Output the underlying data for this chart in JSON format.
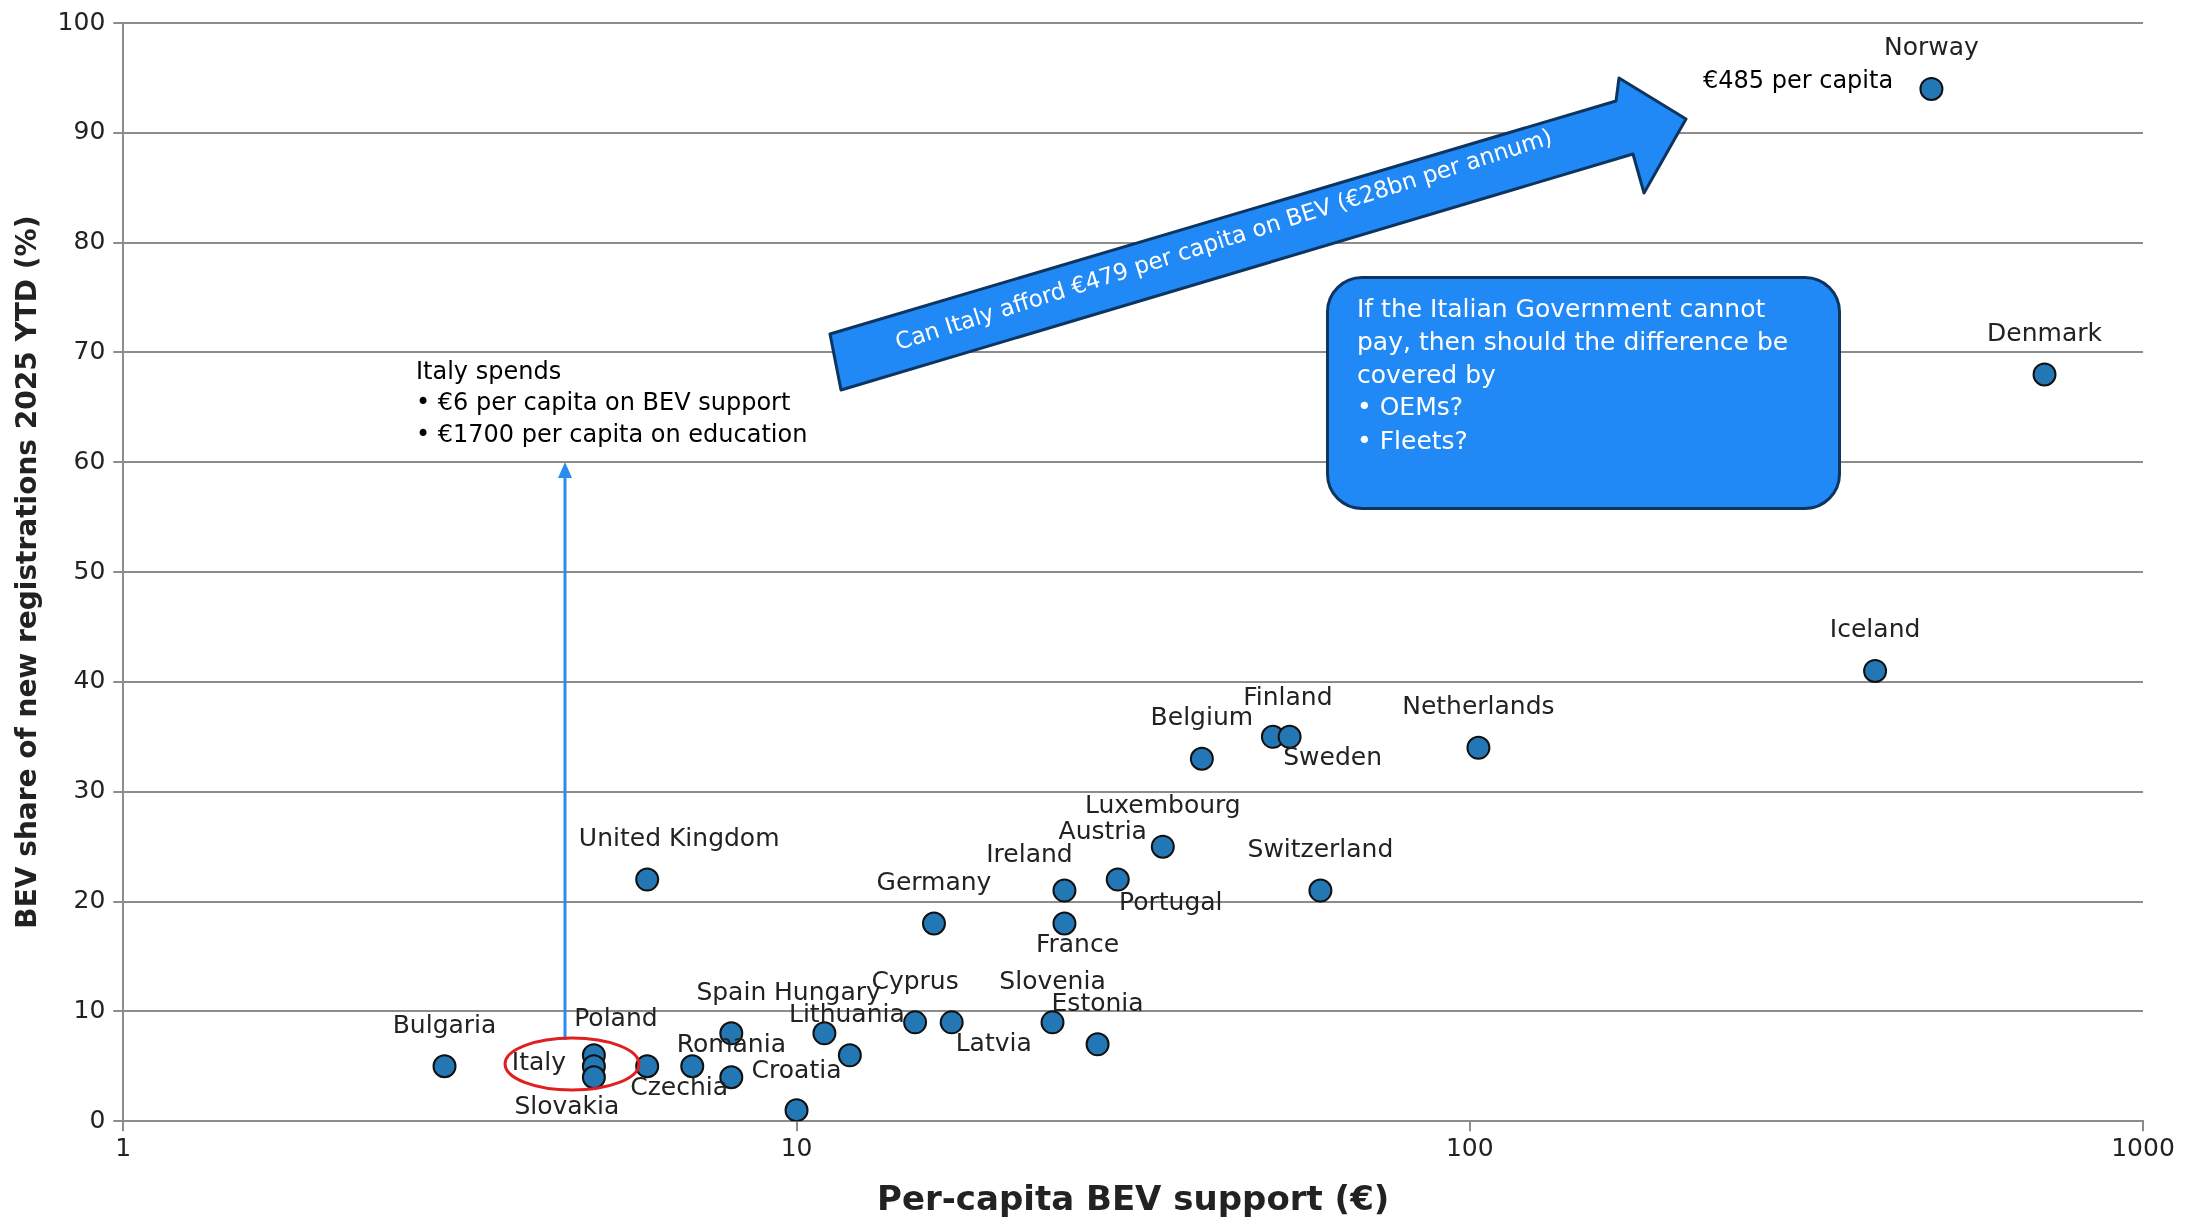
{
  "chart_data": {
    "type": "scatter",
    "xlabel": "Per-capita BEV support (€)",
    "ylabel": "BEV share of new registrations 2025 YTD (%)",
    "log": "x",
    "grid": "y",
    "legend": false,
    "marker": "circle",
    "xlim": [
      1,
      1000
    ],
    "xticks": [
      1,
      10,
      100,
      1000
    ],
    "ylim": [
      0,
      100
    ],
    "yticks": [
      0,
      10,
      20,
      30,
      40,
      50,
      60,
      70,
      80,
      90,
      100
    ],
    "series": [
      {
        "color": "#2477b5",
        "x": [
          3,
          5,
          5,
          5,
          6,
          7,
          8,
          8,
          10,
          11,
          12,
          15,
          17,
          24,
          28,
          16,
          25,
          25,
          30,
          35,
          60,
          40,
          51,
          54,
          103,
          6,
          400,
          714,
          485
        ],
        "values": [
          5,
          6,
          5,
          4,
          5,
          5,
          8,
          4,
          1,
          8,
          6,
          9,
          9,
          9,
          7,
          18,
          21,
          18,
          22,
          25,
          21,
          33,
          35,
          35,
          34,
          22,
          41,
          68,
          94
        ]
      }
    ],
    "annotations": [
      {
        "text": "Bulgaria",
        "x": 3,
        "y": 5
      },
      {
        "text": "Poland",
        "x": 5,
        "y": 6
      },
      {
        "text": "Italy",
        "x": 5,
        "y": 5
      },
      {
        "text": "Slovakia",
        "x": 5,
        "y": 4
      },
      {
        "text": "Czechia",
        "x": 6,
        "y": 5
      },
      {
        "text": "Spain",
        "x": 8,
        "y": 8
      },
      {
        "text": "Romania",
        "x": 8,
        "y": 4
      },
      {
        "text": "Croatia",
        "x": 10,
        "y": 1
      },
      {
        "text": "Hungary",
        "x": 11,
        "y": 8
      },
      {
        "text": "Lithuania",
        "x": 12,
        "y": 6
      },
      {
        "text": "Cyprus",
        "x": 15,
        "y": 9
      },
      {
        "text": "Latvia",
        "x": 17,
        "y": 9
      },
      {
        "text": "Slovenia",
        "x": 24,
        "y": 9
      },
      {
        "text": "Estonia",
        "x": 28,
        "y": 7
      },
      {
        "text": "Germany",
        "x": 16,
        "y": 18
      },
      {
        "text": "Ireland",
        "x": 25,
        "y": 21
      },
      {
        "text": "France",
        "x": 25,
        "y": 18
      },
      {
        "text": "Austria",
        "x": 30,
        "y": 22
      },
      {
        "text": "Portugal",
        "x": 30,
        "y": 22
      },
      {
        "text": "Luxembourg",
        "x": 35,
        "y": 25
      },
      {
        "text": "Switzerland",
        "x": 60,
        "y": 21
      },
      {
        "text": "Belgium",
        "x": 40,
        "y": 33
      },
      {
        "text": "Finland",
        "x": 51,
        "y": 35
      },
      {
        "text": "Sweden",
        "x": 54,
        "y": 35
      },
      {
        "text": "Netherlands",
        "x": 103,
        "y": 34
      },
      {
        "text": "United Kingdom",
        "x": 6,
        "y": 22
      },
      {
        "text": "Iceland",
        "x": 400,
        "y": 41
      },
      {
        "text": "Denmark",
        "x": 714,
        "y": 68
      },
      {
        "text": "Norway",
        "x": 485,
        "y": 94
      },
      "Italy spends",
      "•   €6 per capita on BEV support",
      "•   €1700 per capita on education",
      "€485 per capita",
      "Can Italy afford €479 per capita on BEV (€28bn per annum)",
      "If the Italian Government cannot pay, then should the difference be covered by",
      "•   OEMs?",
      "•   Fleets?"
    ]
  }
}
